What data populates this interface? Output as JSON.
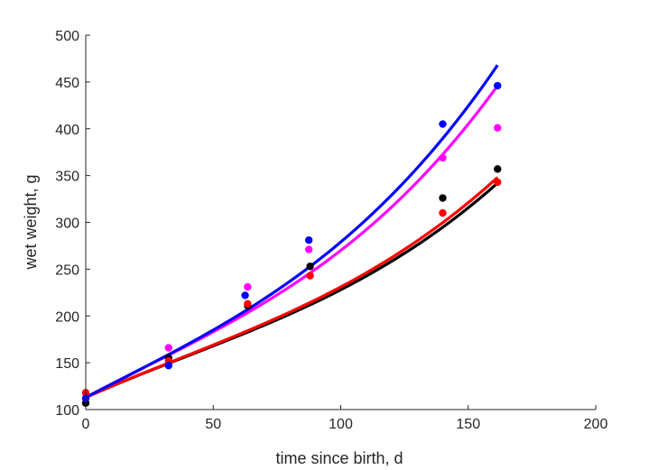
{
  "chart_data": {
    "type": "scatter",
    "xlabel": "time since birth, d",
    "ylabel": "wet weight, g",
    "xlim": [
      0,
      200
    ],
    "ylim": [
      100,
      500
    ],
    "xticks": [
      0,
      50,
      100,
      150,
      200
    ],
    "yticks": [
      100,
      150,
      200,
      250,
      300,
      350,
      400,
      450,
      500
    ],
    "grid": false,
    "legend": "none",
    "series": [
      {
        "color": "#0000ff",
        "points": [
          [
            0,
            112
          ],
          [
            32.5,
            147
          ],
          [
            62.5,
            222
          ],
          [
            87.5,
            281
          ],
          [
            140,
            405
          ],
          [
            161.5,
            446
          ]
        ],
        "fit": [
          [
            0,
            113
          ],
          [
            50,
            185
          ],
          [
            100,
            279
          ],
          [
            161.5,
            468
          ]
        ]
      },
      {
        "color": "#ff00ff",
        "points": [
          [
            0,
            112
          ],
          [
            32.5,
            166
          ],
          [
            63.5,
            231
          ],
          [
            87.5,
            271
          ],
          [
            140,
            369
          ],
          [
            161.5,
            401
          ]
        ],
        "fit": [
          [
            0,
            113
          ],
          [
            50,
            183
          ],
          [
            100,
            270
          ],
          [
            161.5,
            446
          ]
        ]
      },
      {
        "color": "#ff0000",
        "points": [
          [
            0,
            118
          ],
          [
            32.5,
            152
          ],
          [
            63.5,
            213
          ],
          [
            88,
            243
          ],
          [
            140,
            310
          ],
          [
            161.5,
            343
          ]
        ],
        "fit": [
          [
            0,
            113
          ],
          [
            50,
            169
          ],
          [
            100,
            231
          ],
          [
            161.5,
            348
          ]
        ]
      },
      {
        "color": "#000000",
        "points": [
          [
            0,
            107
          ],
          [
            32.5,
            155
          ],
          [
            63.5,
            211
          ],
          [
            88,
            253
          ],
          [
            140,
            326
          ],
          [
            161.5,
            357
          ]
        ],
        "fit": [
          [
            0,
            113
          ],
          [
            50,
            168
          ],
          [
            100,
            228
          ],
          [
            161.5,
            342
          ]
        ]
      }
    ]
  }
}
